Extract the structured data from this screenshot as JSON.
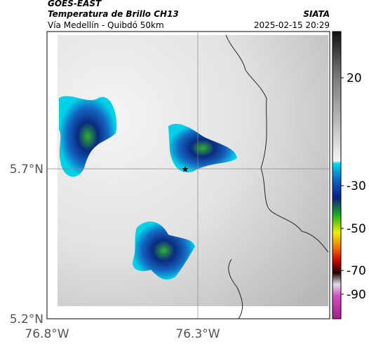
{
  "header": {
    "product": "GOES-EAST",
    "title": "Temperatura de Brillo CH13",
    "route": "Vía Medellín - Quibdó 50km",
    "source": "SIATA",
    "timestamp": "2025-02-15 20:29"
  },
  "map": {
    "lat_labels": [
      "5.7°N",
      "5.2°N"
    ],
    "lon_labels": [
      "76.8°W",
      "76.3°W"
    ]
  },
  "colorbar": {
    "ticks": [
      20,
      -30,
      -50,
      -70,
      -90
    ]
  }
}
